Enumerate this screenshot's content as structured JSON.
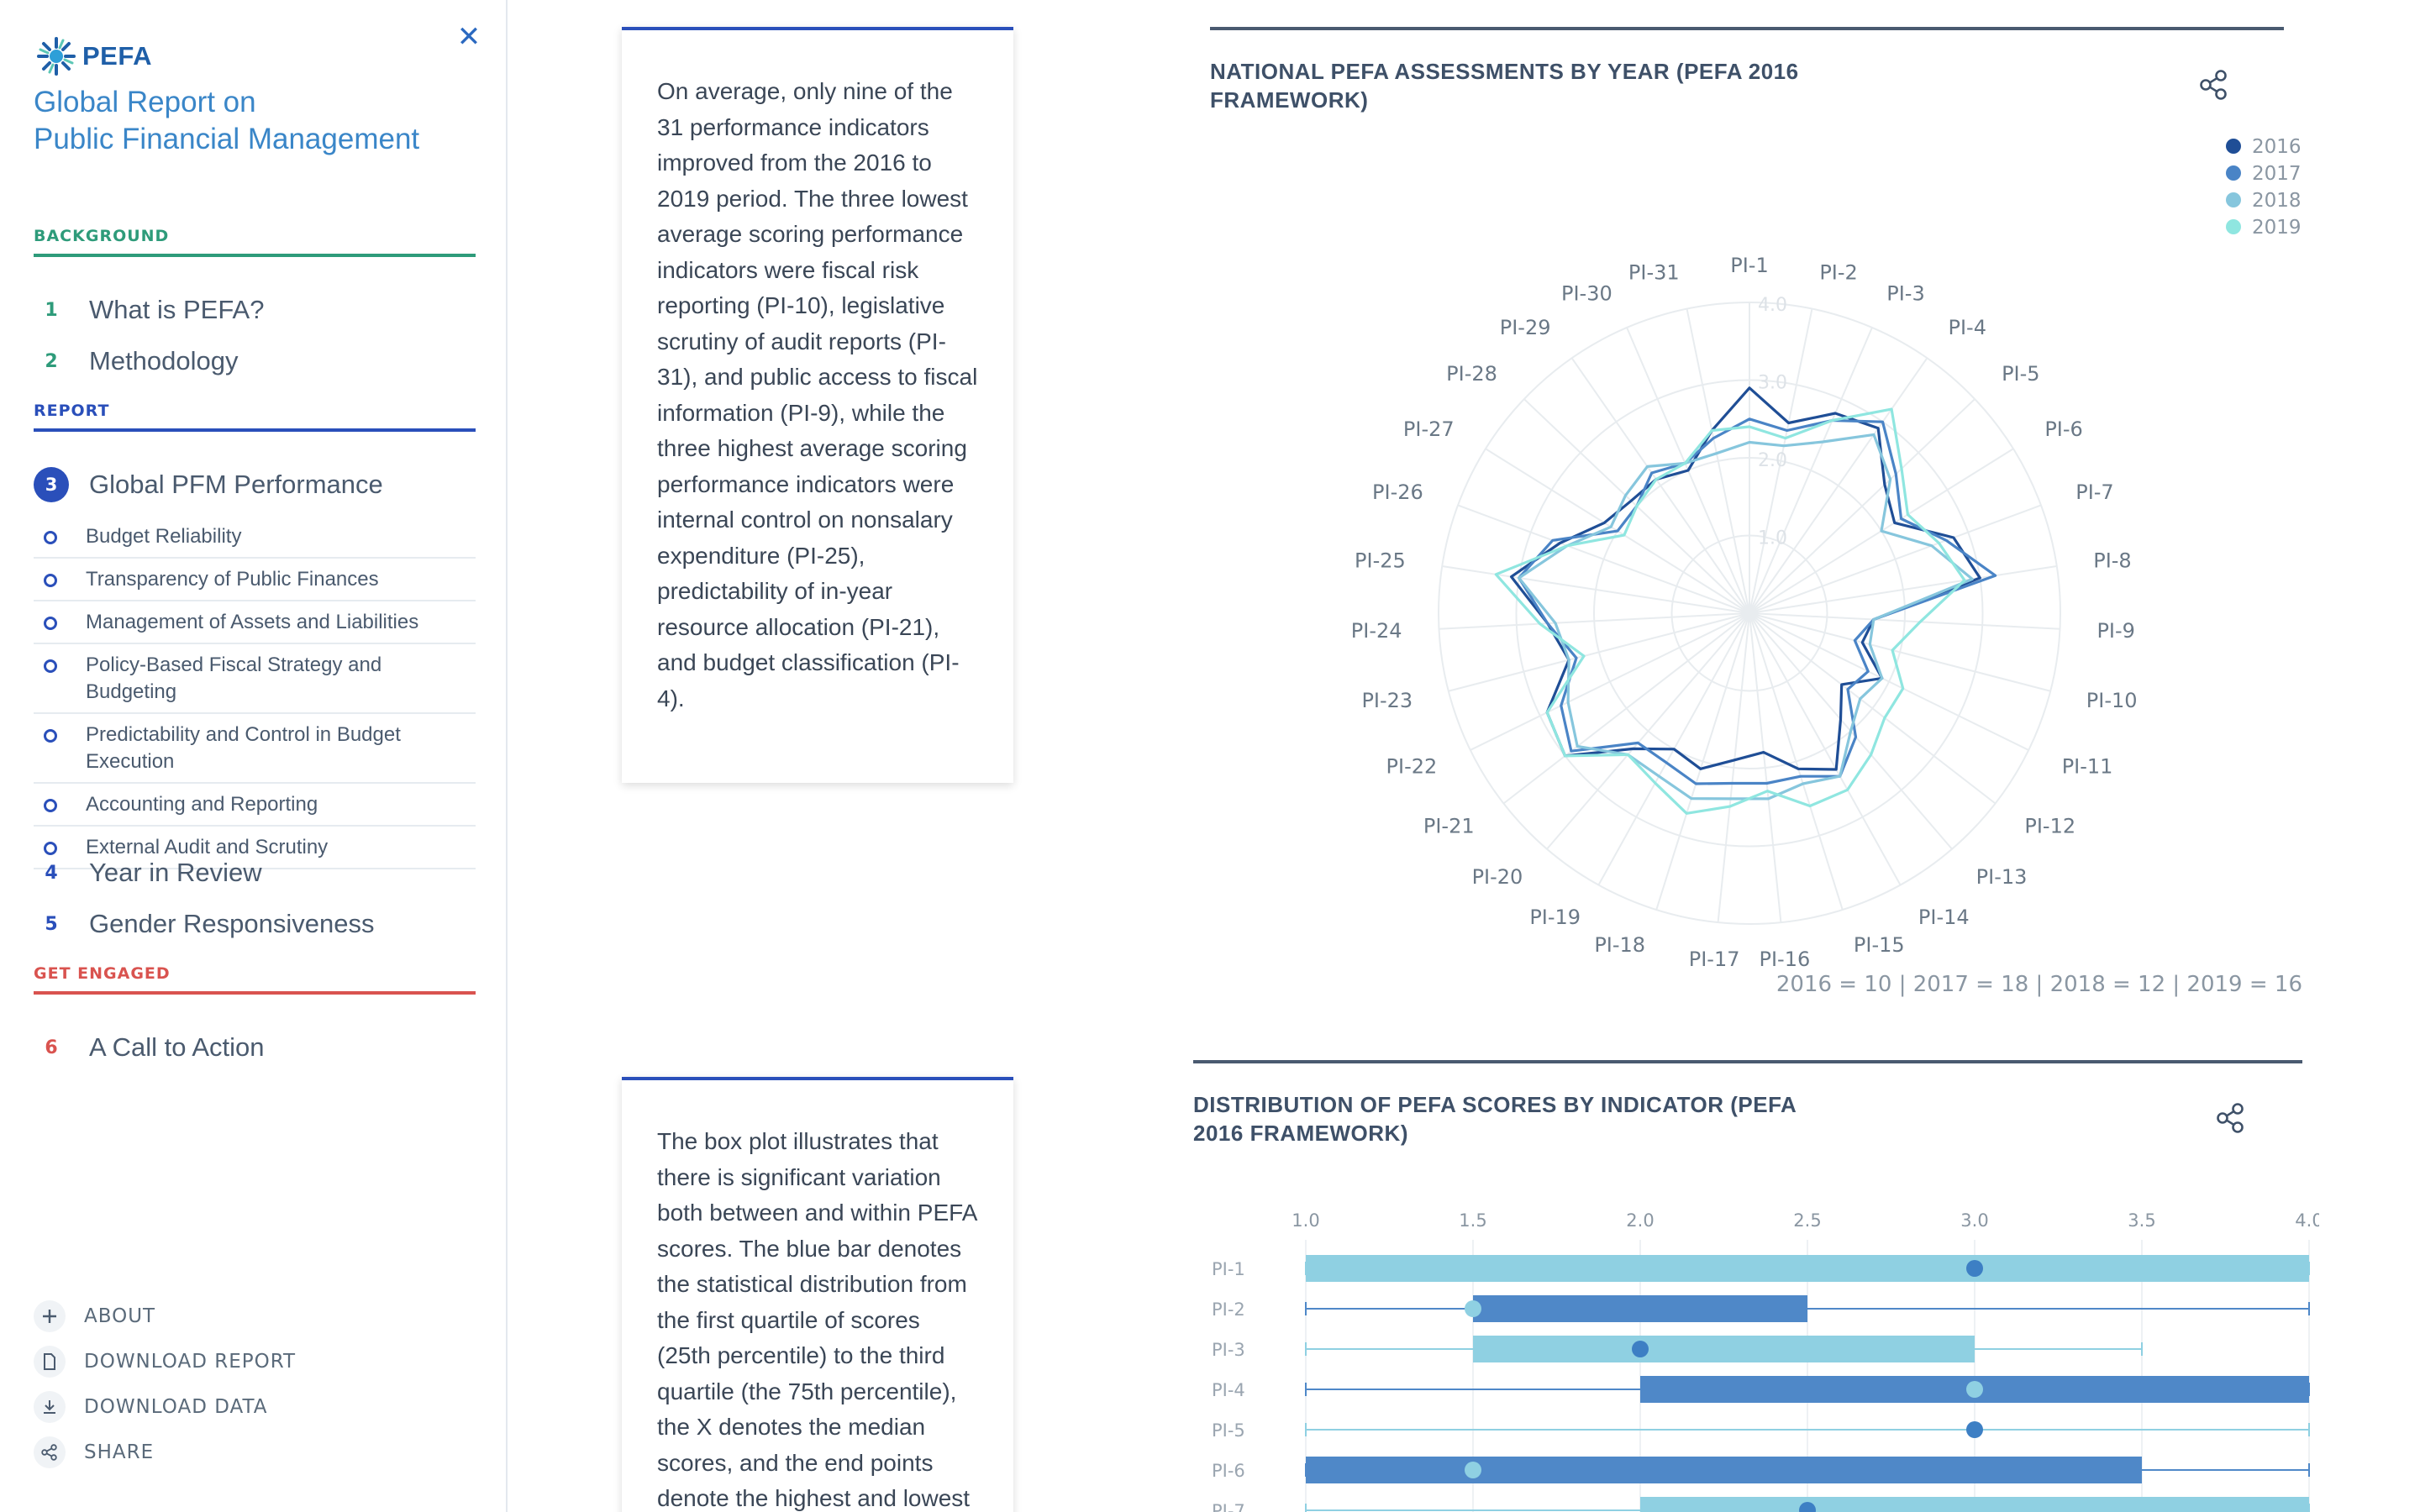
{
  "sidebar": {
    "logo_text": "PEFA",
    "close_icon": "close-icon",
    "title_line1": "Global Report on",
    "title_line2": "Public Financial Management",
    "sections": {
      "background": "BACKGROUND",
      "report": "REPORT",
      "get_engaged": "GET ENGAGED"
    },
    "items": [
      {
        "num": "1",
        "label": "What is PEFA?"
      },
      {
        "num": "2",
        "label": "Methodology"
      },
      {
        "num": "3",
        "label": "Global PFM Performance"
      },
      {
        "num": "4",
        "label": "Year in Review"
      },
      {
        "num": "5",
        "label": "Gender Responsiveness"
      },
      {
        "num": "6",
        "label": "A Call to Action"
      }
    ],
    "subitems": [
      "Budget Reliability",
      "Transparency of Public Finances",
      "Management of Assets and Liabilities",
      "Policy-Based Fiscal Strategy and Budgeting",
      "Predictability and Control in Budget Execution",
      "Accounting and Reporting",
      "External Audit and Scrutiny"
    ],
    "footer": {
      "about": "ABOUT",
      "download_report": "DOWNLOAD REPORT",
      "download_data": "DOWNLOAD DATA",
      "share": "SHARE"
    }
  },
  "cards": {
    "card1_text": "On average, only nine of the 31 performance indicators improved from the 2016 to 2019 period. The three lowest average scoring performance indicators were fiscal risk reporting (PI-10), legislative scrutiny of audit reports (PI-31), and public access to fiscal information (PI-9), while the three highest average scoring performance indicators were internal control on nonsalary expenditure (PI-25), predictability of in-year resource allocation (PI-21), and budget classification (PI-4).",
    "card2_text": "The box plot illustrates that there is significant variation both between and within PEFA scores. The blue bar denotes the statistical distribution from the first quartile of scores (25th percentile) to the third quartile (the 75th percentile), the X denotes the median scores, and the end points denote the highest and lowest"
  },
  "chart_data": [
    {
      "type": "radar",
      "title": "NATIONAL PEFA ASSESSMENTS BY YEAR (PEFA 2016 FRAMEWORK)",
      "categories": [
        "PI-1",
        "PI-2",
        "PI-3",
        "PI-4",
        "PI-5",
        "PI-6",
        "PI-7",
        "PI-8",
        "PI-9",
        "PI-10",
        "PI-11",
        "PI-12",
        "PI-13",
        "PI-14",
        "PI-15",
        "PI-16",
        "PI-17",
        "PI-18",
        "PI-19",
        "PI-20",
        "PI-21",
        "PI-22",
        "PI-23",
        "PI-24",
        "PI-25",
        "PI-26",
        "PI-27",
        "PI-28",
        "PI-29",
        "PI-30",
        "PI-31"
      ],
      "radial_ticks": [
        "1.0",
        "2.0",
        "3.0",
        "4.0"
      ],
      "rlim": [
        0,
        4
      ],
      "legend_position": "top-right",
      "series": [
        {
          "name": "2016",
          "color": "#1f4e96",
          "values": [
            2.9,
            2.5,
            2.8,
            2.9,
            2.4,
            2.2,
            2.8,
            3.0,
            1.6,
            1.5,
            1.9,
            1.5,
            1.8,
            2.3,
            2.1,
            1.8,
            1.9,
            2.1,
            2.0,
            2.3,
            3.0,
            2.9,
            2.4,
            2.6,
            3.1,
            2.6,
            2.2,
            2.1,
            2.1,
            2.0,
            2.4
          ]
        },
        {
          "name": "2017",
          "color": "#4a84c6",
          "values": [
            2.5,
            2.4,
            2.7,
            3.0,
            2.6,
            2.3,
            2.7,
            3.2,
            1.6,
            1.4,
            1.7,
            1.6,
            2.1,
            2.4,
            2.2,
            2.2,
            2.2,
            2.3,
            2.2,
            2.2,
            2.9,
            2.7,
            2.3,
            2.6,
            3.0,
            2.7,
            2.0,
            2.0,
            2.2,
            2.1,
            2.3
          ]
        },
        {
          "name": "2018",
          "color": "#86c6dd",
          "values": [
            2.2,
            2.2,
            2.4,
            2.8,
            2.5,
            2.0,
            2.5,
            2.9,
            1.6,
            1.6,
            1.9,
            1.8,
            2.0,
            2.4,
            2.3,
            2.4,
            2.4,
            2.5,
            2.4,
            2.4,
            2.8,
            2.6,
            2.4,
            2.5,
            3.0,
            2.5,
            2.1,
            2.2,
            2.3,
            2.1,
            2.1
          ]
        },
        {
          "name": "2019",
          "color": "#8fe6e0",
          "values": [
            2.4,
            2.3,
            2.7,
            3.2,
            2.7,
            2.4,
            2.6,
            2.8,
            2.2,
            1.9,
            2.2,
            2.2,
            2.4,
            2.6,
            2.6,
            2.3,
            2.5,
            2.7,
            2.5,
            2.4,
            3.0,
            2.9,
            2.2,
            2.7,
            3.3,
            2.5,
            1.9,
            2.0,
            2.1,
            2.1,
            2.4
          ]
        }
      ],
      "footnote": "2016 = 10 | 2017 = 18 | 2018 = 12 | 2019 = 16"
    },
    {
      "type": "box",
      "title": "DISTRIBUTION OF PEFA SCORES BY INDICATOR (PEFA 2016 FRAMEWORK)",
      "x_ticks": [
        "1.0",
        "1.5",
        "2.0",
        "2.5",
        "3.0",
        "3.5",
        "4.0"
      ],
      "xlim": [
        1.0,
        4.0
      ],
      "rows": [
        {
          "label": "PI-1",
          "min": 1.0,
          "q1": 1.0,
          "q3": 4.0,
          "max": 4.0,
          "median": 3.0,
          "color": "#8fd0e2",
          "median_color": "#3d7fc4"
        },
        {
          "label": "PI-2",
          "min": 1.0,
          "q1": 1.5,
          "q3": 2.5,
          "max": 4.0,
          "median": 1.5,
          "color": "#4f88c8",
          "median_color": "#8fd0e2"
        },
        {
          "label": "PI-3",
          "min": 1.0,
          "q1": 1.5,
          "q3": 3.0,
          "max": 3.5,
          "median": 2.0,
          "color": "#8fd0e2",
          "median_color": "#3d7fc4"
        },
        {
          "label": "PI-4",
          "min": 1.0,
          "q1": 2.0,
          "q3": 4.0,
          "max": 4.0,
          "median": 3.0,
          "color": "#4f88c8",
          "median_color": "#8fd0e2"
        },
        {
          "label": "PI-5",
          "min": 1.0,
          "q1": 3.0,
          "q3": 3.0,
          "max": 4.0,
          "median": 3.0,
          "color": "#8fd0e2",
          "median_color": "#3d7fc4"
        },
        {
          "label": "PI-6",
          "min": 1.0,
          "q1": 1.0,
          "q3": 3.5,
          "max": 4.0,
          "median": 1.5,
          "color": "#4f88c8",
          "median_color": "#8fd0e2"
        },
        {
          "label": "PI-7",
          "min": 1.0,
          "q1": 2.0,
          "q3": 4.0,
          "max": 4.0,
          "median": 2.5,
          "color": "#8fd0e2",
          "median_color": "#3d7fc4"
        }
      ]
    }
  ]
}
